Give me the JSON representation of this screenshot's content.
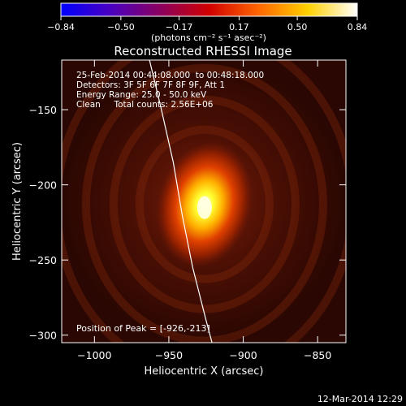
{
  "chart_data": {
    "type": "heatmap",
    "title": "Reconstructed RHESSI Image",
    "xlabel": "Heliocentric X (arcsec)",
    "ylabel": "Heliocentric Y (arcsec)",
    "xlim": [
      -1022,
      -831
    ],
    "ylim": [
      -305,
      -117
    ],
    "x_ticks": [
      {
        "value": -1000,
        "label": "−1000"
      },
      {
        "value": -950,
        "label": "−950"
      },
      {
        "value": -900,
        "label": "−900"
      },
      {
        "value": -850,
        "label": "−850"
      }
    ],
    "y_ticks": [
      {
        "value": -150,
        "label": "−150"
      },
      {
        "value": -200,
        "label": "−200"
      },
      {
        "value": -250,
        "label": "−250"
      },
      {
        "value": -300,
        "label": "−300"
      }
    ],
    "colorbar": {
      "range": [
        -0.84,
        0.84
      ],
      "ticks": [
        {
          "value": -0.84,
          "label": "−0.84"
        },
        {
          "value": -0.5,
          "label": "−0.50"
        },
        {
          "value": -0.17,
          "label": "−0.17"
        },
        {
          "value": 0.17,
          "label": "0.17"
        },
        {
          "value": 0.5,
          "label": "0.50"
        },
        {
          "value": 0.84,
          "label": "0.84"
        }
      ],
      "unit_label": "(photons cm⁻² s⁻¹ asec⁻²)",
      "stops": [
        "#0000ff",
        "#4a00c0",
        "#8a0060",
        "#d00000",
        "#ff6600",
        "#ffd000",
        "#ffffff"
      ]
    },
    "info_lines": [
      "25-Feb-2014 00:44:08.000  to 00:48:18.000",
      "Detectors: 3F 5F 6F 7F 8F 9F, Att 1",
      "Energy Range: 25.0 - 50.0 keV",
      "Clean     Total counts: 2.56E+06"
    ],
    "peak_label": "Position of Peak = [-926,-213]",
    "peak": {
      "x": -926,
      "y": -213
    },
    "limb_curve": [
      {
        "x": -963,
        "y": -117
      },
      {
        "x": -955,
        "y": -150
      },
      {
        "x": -947,
        "y": -185
      },
      {
        "x": -941,
        "y": -220
      },
      {
        "x": -934,
        "y": -255
      },
      {
        "x": -925,
        "y": -290
      },
      {
        "x": -921,
        "y": -305
      }
    ],
    "grid": false,
    "colormap_note": "red temperature",
    "footer_timestamp": "12-Mar-2014 12:29"
  }
}
